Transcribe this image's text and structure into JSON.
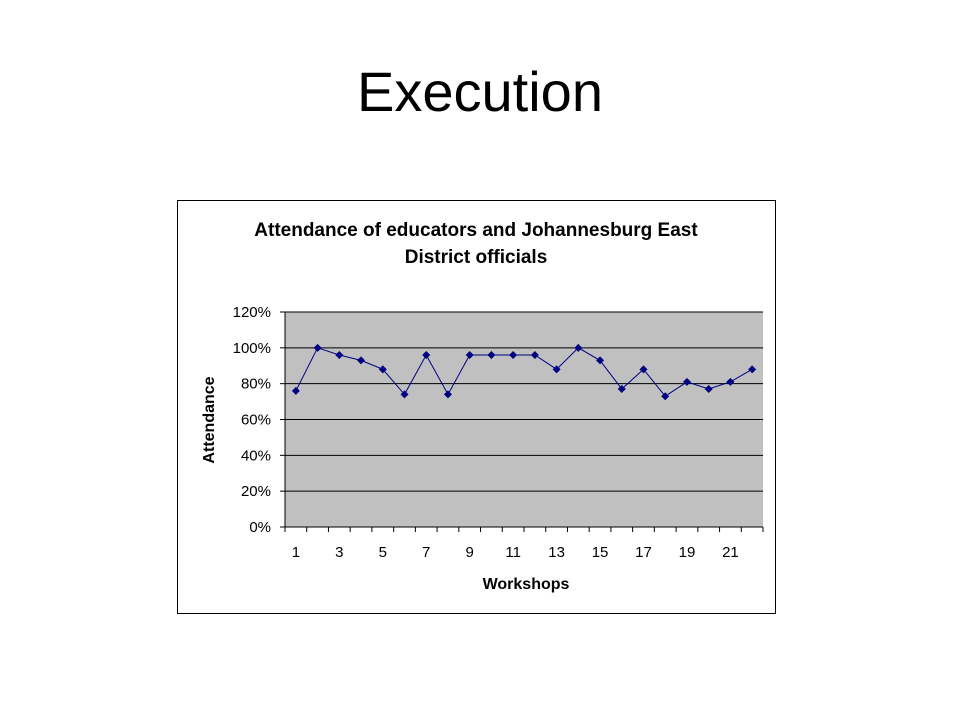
{
  "slide": {
    "title": "Execution"
  },
  "colors": {
    "plot_area": "#c0c0c0",
    "series_line": "#000080",
    "gridline": "#000000"
  },
  "chart_data": {
    "type": "line",
    "title_lines": [
      "Attendance of educators and Johannesburg East",
      "District officials"
    ],
    "xlabel": "Workshops",
    "ylabel": "Attendance",
    "x": [
      1,
      2,
      3,
      4,
      5,
      6,
      7,
      8,
      9,
      10,
      11,
      12,
      13,
      14,
      15,
      16,
      17,
      18,
      19,
      20,
      21,
      22
    ],
    "x_tick_labels": [
      "1",
      "3",
      "5",
      "7",
      "9",
      "11",
      "13",
      "15",
      "17",
      "19",
      "21"
    ],
    "y_tick_labels": [
      "0%",
      "20%",
      "40%",
      "60%",
      "80%",
      "100%",
      "120%"
    ],
    "ylim": [
      0,
      1.2
    ],
    "y_format": "percent",
    "grid": true,
    "marker": "diamond",
    "series": [
      {
        "values": [
          0.76,
          1.0,
          0.96,
          0.93,
          0.88,
          0.74,
          0.96,
          0.74,
          0.96,
          0.96,
          0.96,
          0.96,
          0.88,
          1.0,
          0.93,
          0.77,
          0.88,
          0.73,
          0.81,
          0.77,
          0.81,
          0.88
        ]
      }
    ]
  }
}
